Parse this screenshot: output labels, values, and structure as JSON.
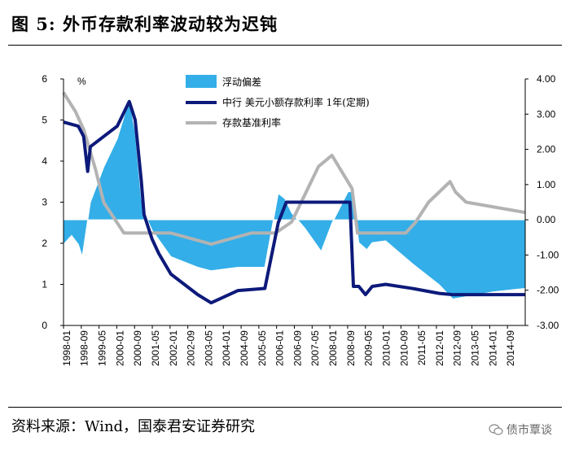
{
  "title": "图 5:  外币存款利率波动较为迟钝",
  "source": "资料来源：Wind，国泰君安证券研究",
  "watermark": "债市覃谈",
  "chart_data": {
    "type": "line",
    "unit_label": "%",
    "left_axis": {
      "min": 0,
      "max": 6,
      "ticks": [
        "0",
        "1",
        "2",
        "3",
        "4",
        "5",
        "6"
      ]
    },
    "right_axis": {
      "min": -3,
      "max": 4,
      "ticks": [
        "-3.00",
        "-2.00",
        "-1.00",
        "0.00",
        "1.00",
        "2.00",
        "3.00",
        "4.00"
      ]
    },
    "x_ticks": [
      "1998-01",
      "1998-09",
      "1999-05",
      "2000-01",
      "2000-09",
      "2001-05",
      "2002-01",
      "2002-09",
      "2003-05",
      "2004-01",
      "2004-09",
      "2005-05",
      "2006-01",
      "2006-09",
      "2007-05",
      "2008-01",
      "2008-09",
      "2009-05",
      "2010-01",
      "2010-09",
      "2011-05",
      "2012-01",
      "2012-09",
      "2013-05",
      "2014-01",
      "2014-09"
    ],
    "x_range": [
      1998.0,
      2015.2
    ],
    "colors": {
      "spread": "#33aee8",
      "usd_rate": "#0d1a7a",
      "base_rate": "#b3b3b3"
    },
    "series": [
      {
        "name": "浮动偏差",
        "type": "area",
        "axis": "right",
        "x": [
          1998.0,
          1998.3,
          1998.55,
          1998.7,
          1999.0,
          1999.5,
          2000.0,
          2000.2,
          2000.45,
          2000.67,
          2000.9,
          2001.0,
          2001.3,
          2002.0,
          2003.0,
          2003.5,
          2004.5,
          2005.5,
          2006.0,
          2006.25,
          2006.5,
          2007.0,
          2007.6,
          2008.0,
          2008.6,
          2008.75,
          2009.0,
          2009.3,
          2009.5,
          2010.0,
          2011.0,
          2012.0,
          2012.5,
          2014.0,
          2015.2
        ],
        "values": [
          -0.7,
          -0.45,
          -0.7,
          -1.05,
          0.5,
          1.5,
          2.3,
          2.8,
          3.45,
          2.5,
          0.6,
          0.2,
          -0.3,
          -1.05,
          -1.35,
          -1.45,
          -1.35,
          -1.35,
          0.75,
          0.6,
          0.2,
          -0.25,
          -0.9,
          -0.1,
          0.8,
          0.8,
          -0.65,
          -0.85,
          -0.65,
          -0.6,
          -1.25,
          -1.85,
          -2.25,
          -2.05,
          -1.95
        ]
      },
      {
        "name": "中行 美元小额存款利率 1年(定期)",
        "type": "line",
        "axis": "left",
        "x": [
          1998.0,
          1998.55,
          1998.75,
          1998.9,
          1999.0,
          2000.0,
          2000.45,
          2000.67,
          2000.9,
          2001.0,
          2001.3,
          2001.55,
          2002.0,
          2003.0,
          2003.5,
          2004.5,
          2005.5,
          2006.0,
          2006.3,
          2008.5,
          2008.67,
          2008.8,
          2009.0,
          2009.25,
          2009.5,
          2010.0,
          2011.0,
          2012.0,
          2012.5,
          2015.2
        ],
        "values": [
          4.95,
          4.85,
          4.6,
          3.75,
          4.35,
          4.85,
          5.45,
          5.0,
          3.5,
          2.7,
          2.1,
          1.75,
          1.25,
          0.75,
          0.55,
          0.85,
          0.9,
          2.5,
          3.0,
          3.0,
          3.0,
          0.95,
          0.95,
          0.75,
          0.95,
          1.0,
          0.9,
          0.78,
          0.75,
          0.75
        ]
      },
      {
        "name": "存款基准利率",
        "type": "line",
        "axis": "left",
        "x": [
          1998.0,
          1998.45,
          1998.75,
          1999.2,
          1999.5,
          2000.25,
          2002.0,
          2003.5,
          2005.0,
          2005.9,
          2006.5,
          2007.5,
          2008.0,
          2008.75,
          2008.95,
          2010.75,
          2011.1,
          2011.6,
          2012.4,
          2012.6,
          2013.0,
          2015.2
        ],
        "values": [
          5.67,
          5.2,
          4.77,
          3.78,
          2.99,
          2.25,
          2.25,
          1.98,
          2.25,
          2.25,
          2.52,
          3.87,
          4.14,
          3.33,
          2.25,
          2.25,
          2.5,
          3.0,
          3.5,
          3.25,
          3.0,
          2.75
        ]
      }
    ]
  }
}
